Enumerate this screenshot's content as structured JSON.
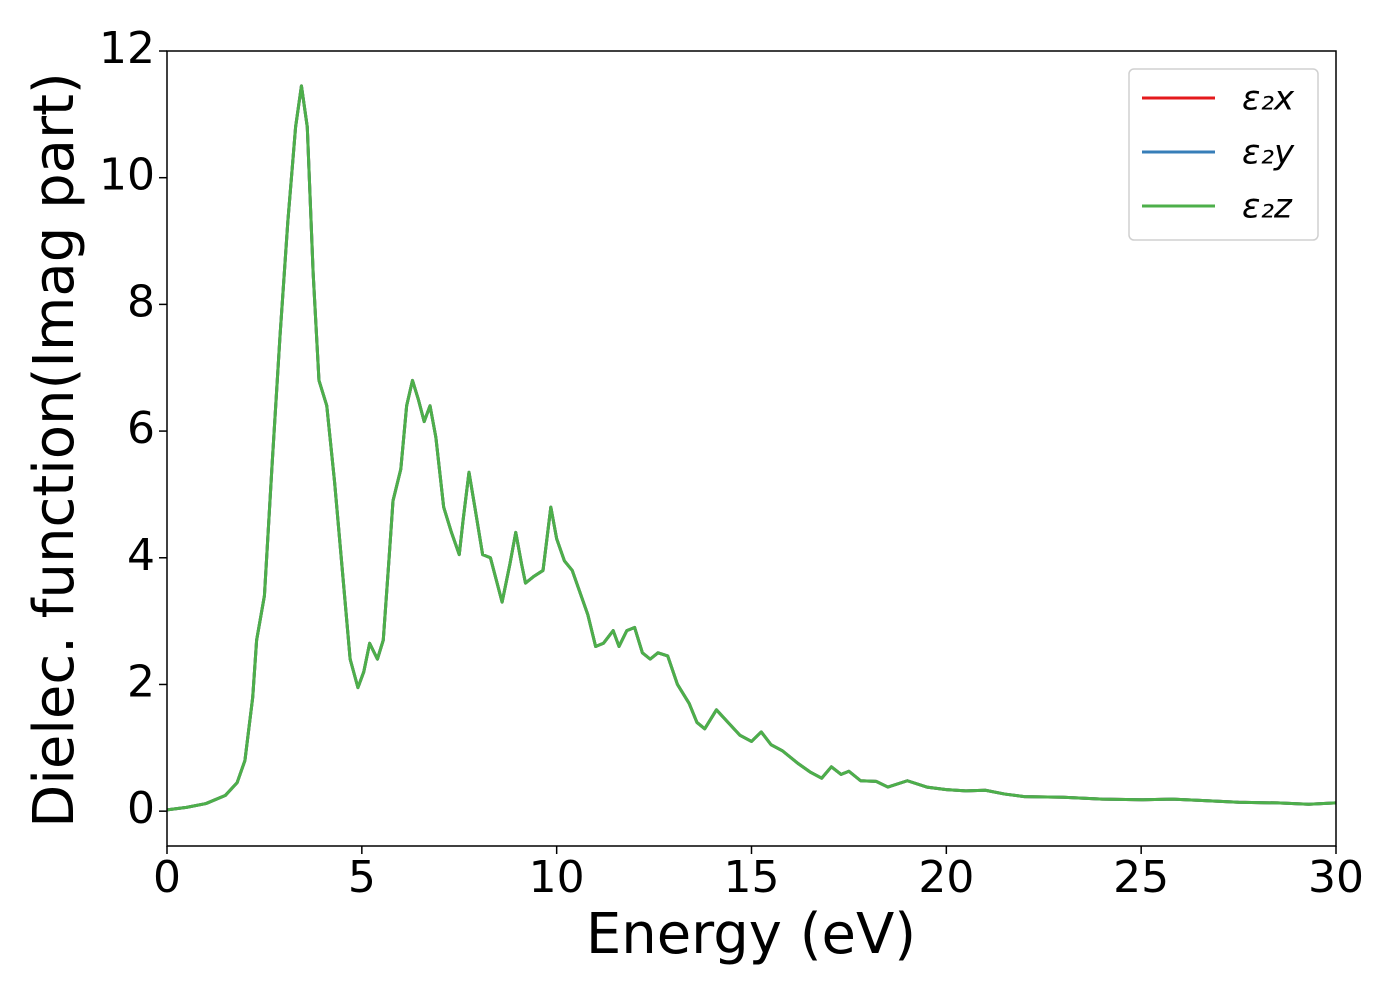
{
  "chart_data": {
    "type": "line",
    "xlabel": "Energy (eV)",
    "ylabel": "Dielec. function(Imag part)",
    "xlim": [
      0,
      30
    ],
    "ylim": [
      -0.55,
      12
    ],
    "xticks": [
      0,
      5,
      10,
      15,
      20,
      25,
      30
    ],
    "yticks": [
      0,
      2,
      4,
      6,
      8,
      10,
      12
    ],
    "legend": "upper right",
    "grid": false,
    "x": [
      0,
      0.5,
      1.0,
      1.5,
      1.8,
      2.0,
      2.2,
      2.3,
      2.5,
      2.7,
      2.9,
      3.1,
      3.3,
      3.45,
      3.6,
      3.75,
      3.9,
      4.1,
      4.3,
      4.5,
      4.7,
      4.9,
      5.05,
      5.2,
      5.4,
      5.55,
      5.7,
      5.8,
      6.0,
      6.15,
      6.3,
      6.45,
      6.6,
      6.75,
      6.9,
      7.1,
      7.3,
      7.5,
      7.6,
      7.75,
      7.9,
      8.1,
      8.3,
      8.6,
      8.8,
      8.95,
      9.1,
      9.2,
      9.4,
      9.65,
      9.85,
      10.0,
      10.2,
      10.4,
      10.6,
      10.8,
      11.0,
      11.2,
      11.45,
      11.6,
      11.8,
      12.0,
      12.2,
      12.4,
      12.6,
      12.85,
      13.1,
      13.4,
      13.6,
      13.8,
      14.1,
      14.4,
      14.7,
      15.0,
      15.25,
      15.5,
      15.8,
      16.2,
      16.5,
      16.8,
      17.05,
      17.3,
      17.5,
      17.8,
      18.2,
      18.5,
      19.0,
      19.5,
      20.0,
      20.5,
      21.0,
      21.5,
      22.0,
      23.0,
      24.0,
      25.0,
      25.8,
      26.5,
      27.5,
      28.5,
      29.3,
      30.0
    ],
    "series": [
      {
        "name": "ε₂x",
        "color": "#e41a1c",
        "values": [
          0.02,
          0.06,
          0.12,
          0.25,
          0.45,
          0.8,
          1.8,
          2.7,
          3.4,
          5.5,
          7.5,
          9.3,
          10.8,
          11.45,
          10.8,
          8.5,
          6.8,
          6.4,
          5.2,
          3.8,
          2.4,
          1.95,
          2.2,
          2.65,
          2.4,
          2.7,
          4.0,
          4.9,
          5.4,
          6.4,
          6.8,
          6.5,
          6.15,
          6.4,
          5.9,
          4.8,
          4.4,
          4.05,
          4.6,
          5.35,
          4.8,
          4.05,
          4.0,
          3.3,
          3.9,
          4.4,
          3.9,
          3.6,
          3.7,
          3.8,
          4.8,
          4.3,
          3.95,
          3.8,
          3.45,
          3.1,
          2.6,
          2.65,
          2.85,
          2.6,
          2.85,
          2.9,
          2.5,
          2.4,
          2.5,
          2.45,
          2.0,
          1.7,
          1.4,
          1.3,
          1.6,
          1.4,
          1.2,
          1.1,
          1.25,
          1.05,
          0.95,
          0.75,
          0.62,
          0.52,
          0.7,
          0.58,
          0.63,
          0.48,
          0.47,
          0.38,
          0.48,
          0.38,
          0.34,
          0.32,
          0.33,
          0.27,
          0.23,
          0.22,
          0.19,
          0.18,
          0.19,
          0.17,
          0.14,
          0.13,
          0.11,
          0.13
        ]
      },
      {
        "name": "ε₂y",
        "color": "#377eb8",
        "values": [
          0.02,
          0.06,
          0.12,
          0.25,
          0.45,
          0.8,
          1.8,
          2.7,
          3.4,
          5.5,
          7.5,
          9.3,
          10.8,
          11.45,
          10.8,
          8.5,
          6.8,
          6.4,
          5.2,
          3.8,
          2.4,
          1.95,
          2.2,
          2.65,
          2.4,
          2.7,
          4.0,
          4.9,
          5.4,
          6.4,
          6.8,
          6.5,
          6.15,
          6.4,
          5.9,
          4.8,
          4.4,
          4.05,
          4.6,
          5.35,
          4.8,
          4.05,
          4.0,
          3.3,
          3.9,
          4.4,
          3.9,
          3.6,
          3.7,
          3.8,
          4.8,
          4.3,
          3.95,
          3.8,
          3.45,
          3.1,
          2.6,
          2.65,
          2.85,
          2.6,
          2.85,
          2.9,
          2.5,
          2.4,
          2.5,
          2.45,
          2.0,
          1.7,
          1.4,
          1.3,
          1.6,
          1.4,
          1.2,
          1.1,
          1.25,
          1.05,
          0.95,
          0.75,
          0.62,
          0.52,
          0.7,
          0.58,
          0.63,
          0.48,
          0.47,
          0.38,
          0.48,
          0.38,
          0.34,
          0.32,
          0.33,
          0.27,
          0.23,
          0.22,
          0.19,
          0.18,
          0.19,
          0.17,
          0.14,
          0.13,
          0.11,
          0.13
        ]
      },
      {
        "name": "ε₂z",
        "color": "#4daf4a",
        "values": [
          0.02,
          0.06,
          0.12,
          0.25,
          0.45,
          0.8,
          1.8,
          2.7,
          3.4,
          5.5,
          7.5,
          9.3,
          10.8,
          11.45,
          10.8,
          8.5,
          6.8,
          6.4,
          5.2,
          3.8,
          2.4,
          1.95,
          2.2,
          2.65,
          2.4,
          2.7,
          4.0,
          4.9,
          5.4,
          6.4,
          6.8,
          6.5,
          6.15,
          6.4,
          5.9,
          4.8,
          4.4,
          4.05,
          4.6,
          5.35,
          4.8,
          4.05,
          4.0,
          3.3,
          3.9,
          4.4,
          3.9,
          3.6,
          3.7,
          3.8,
          4.8,
          4.3,
          3.95,
          3.8,
          3.45,
          3.1,
          2.6,
          2.65,
          2.85,
          2.6,
          2.85,
          2.9,
          2.5,
          2.4,
          2.5,
          2.45,
          2.0,
          1.7,
          1.4,
          1.3,
          1.6,
          1.4,
          1.2,
          1.1,
          1.25,
          1.05,
          0.95,
          0.75,
          0.62,
          0.52,
          0.7,
          0.58,
          0.63,
          0.48,
          0.47,
          0.38,
          0.48,
          0.38,
          0.34,
          0.32,
          0.33,
          0.27,
          0.23,
          0.22,
          0.19,
          0.18,
          0.19,
          0.17,
          0.14,
          0.13,
          0.11,
          0.13
        ]
      }
    ]
  }
}
